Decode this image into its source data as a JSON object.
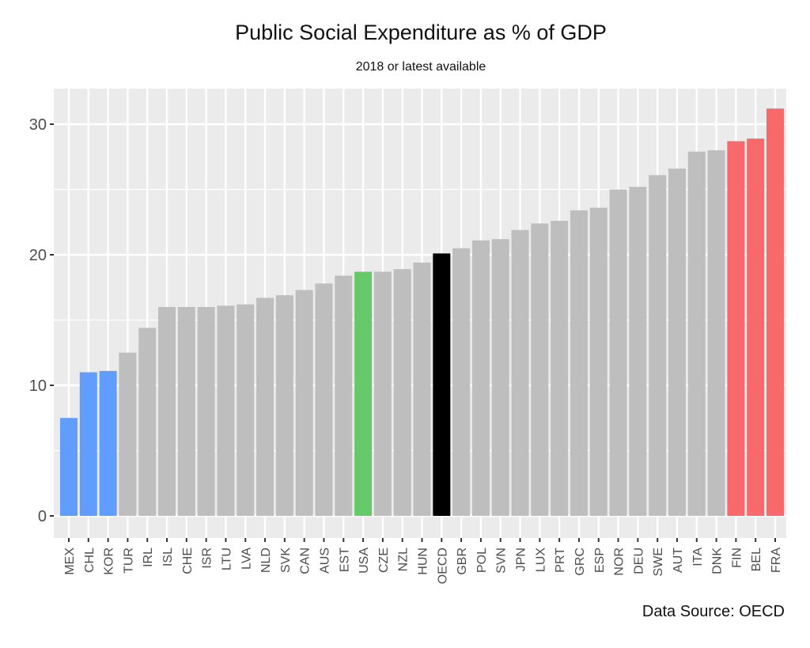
{
  "chart_data": {
    "type": "bar",
    "title": "Public Social Expenditure as % of GDP",
    "subtitle": "2018 or latest available",
    "caption": "Data Source: OECD",
    "xlabel": "",
    "ylabel": "",
    "ylim": [
      0,
      32
    ],
    "yticks": [
      0,
      10,
      20,
      30
    ],
    "grid": true,
    "legend": "none",
    "categories": [
      "MEX",
      "CHL",
      "KOR",
      "TUR",
      "IRL",
      "ISL",
      "CHE",
      "ISR",
      "LTU",
      "LVA",
      "NLD",
      "SVK",
      "CAN",
      "AUS",
      "EST",
      "USA",
      "CZE",
      "NZL",
      "HUN",
      "OECD",
      "GBR",
      "POL",
      "SVN",
      "JPN",
      "LUX",
      "PRT",
      "GRC",
      "ESP",
      "NOR",
      "DEU",
      "SWE",
      "AUT",
      "ITA",
      "DNK",
      "FIN",
      "BEL",
      "FRA"
    ],
    "values": [
      7.5,
      11.0,
      11.1,
      12.5,
      14.4,
      16.0,
      16.0,
      16.0,
      16.1,
      16.2,
      16.7,
      16.9,
      17.3,
      17.8,
      18.4,
      18.7,
      18.7,
      18.9,
      19.4,
      20.1,
      20.5,
      21.1,
      21.2,
      21.9,
      22.4,
      22.6,
      23.4,
      23.6,
      25.0,
      25.2,
      26.1,
      26.6,
      27.9,
      28.0,
      28.7,
      28.9,
      31.2
    ],
    "bar_colors": [
      "#619CFF",
      "#619CFF",
      "#619CFF",
      "#BEBEBE",
      "#BEBEBE",
      "#BEBEBE",
      "#BEBEBE",
      "#BEBEBE",
      "#BEBEBE",
      "#BEBEBE",
      "#BEBEBE",
      "#BEBEBE",
      "#BEBEBE",
      "#BEBEBE",
      "#BEBEBE",
      "#66C96A",
      "#BEBEBE",
      "#BEBEBE",
      "#BEBEBE",
      "#000000",
      "#BEBEBE",
      "#BEBEBE",
      "#BEBEBE",
      "#BEBEBE",
      "#BEBEBE",
      "#BEBEBE",
      "#BEBEBE",
      "#BEBEBE",
      "#BEBEBE",
      "#BEBEBE",
      "#BEBEBE",
      "#BEBEBE",
      "#BEBEBE",
      "#BEBEBE",
      "#F8696B",
      "#F8696B",
      "#F8696B"
    ],
    "panel_background": "#EBEBEB"
  }
}
